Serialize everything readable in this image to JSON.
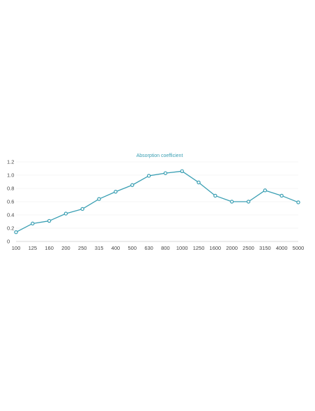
{
  "chart_data": {
    "type": "line",
    "title": "Absorption coefficient",
    "xlabel": "",
    "ylabel": "",
    "categories": [
      "100",
      "125",
      "160",
      "200",
      "250",
      "315",
      "400",
      "500",
      "630",
      "800",
      "1000",
      "1250",
      "1600",
      "2000",
      "2500",
      "3150",
      "4000",
      "5000"
    ],
    "series": [
      {
        "values": [
          0.14,
          0.27,
          0.31,
          0.42,
          0.49,
          0.64,
          0.75,
          0.85,
          0.99,
          1.03,
          1.06,
          0.89,
          0.69,
          0.6,
          0.6,
          0.77,
          0.69,
          0.59
        ]
      }
    ],
    "ylim": [
      0,
      1.2
    ],
    "yticks": [
      "0",
      "0.2",
      "0.4",
      "0.6",
      "0.8",
      "1.0",
      "1.2"
    ],
    "grid": true,
    "legend": "none",
    "colors": {
      "line": "#3a9fb3",
      "title": "#3a9fb3",
      "grid": "#eeeeee",
      "axis": "#cccccc",
      "marker_fill": "#ffffff"
    }
  }
}
